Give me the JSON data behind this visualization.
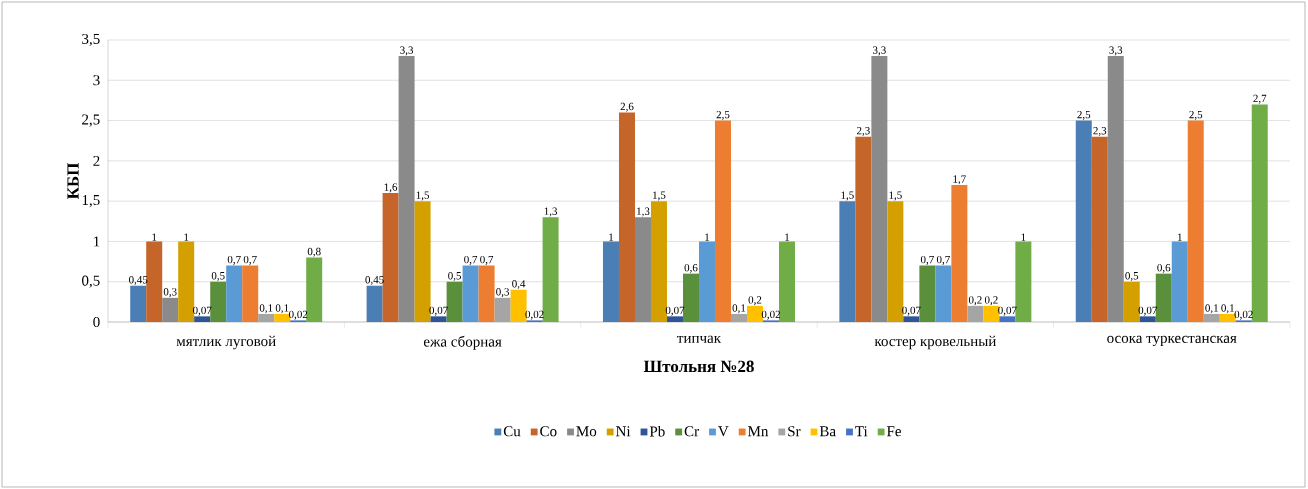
{
  "chart_data": {
    "type": "bar",
    "xlabel": "Штольня №28",
    "ylabel": "КБП",
    "categories": [
      "мятлик луговой",
      "ежа сборная",
      "типчак",
      "костер кровельный",
      "осока туркестанская"
    ],
    "series": [
      {
        "name": "Cu",
        "color": "#4a7eb4",
        "values": [
          0.45,
          0.45,
          1,
          1.5,
          2.5
        ],
        "value_labels": [
          "0,45",
          "0,45",
          "1",
          "1,5",
          "2,5"
        ]
      },
      {
        "name": "Co",
        "color": "#c5652a",
        "values": [
          1,
          1.6,
          2.6,
          2.3,
          2.3
        ],
        "value_labels": [
          "1",
          "1,6",
          "2,6",
          "2,3",
          "2,3"
        ]
      },
      {
        "name": "Mo",
        "color": "#8a8a8a",
        "values": [
          0.3,
          3.3,
          1.3,
          3.3,
          3.3
        ],
        "value_labels": [
          "0,3",
          "3,3",
          "1,3",
          "3,3",
          "3,3"
        ]
      },
      {
        "name": "Ni",
        "color": "#d4a000",
        "values": [
          1,
          1.5,
          1.5,
          1.5,
          0.5
        ],
        "value_labels": [
          "1",
          "1,5",
          "1,5",
          "1,5",
          "0,5"
        ]
      },
      {
        "name": "Pb",
        "color": "#2e5597",
        "values": [
          0.07,
          0.07,
          0.07,
          0.07,
          0.07
        ],
        "value_labels": [
          "0,07",
          "0,07",
          "0,07",
          "0,07",
          "0,07"
        ]
      },
      {
        "name": "Cr",
        "color": "#5a8f3c",
        "values": [
          0.5,
          0.5,
          0.6,
          0.7,
          0.6
        ],
        "value_labels": [
          "0,5",
          "0,5",
          "0,6",
          "0,7",
          "0,6"
        ]
      },
      {
        "name": "V",
        "color": "#5b9bd5",
        "values": [
          0.7,
          0.7,
          1,
          0.7,
          1
        ],
        "value_labels": [
          "0,7",
          "0,7",
          "1",
          "0,7",
          "1"
        ]
      },
      {
        "name": "Mn",
        "color": "#ed7d31",
        "values": [
          0.7,
          0.7,
          2.5,
          1.7,
          2.5
        ],
        "value_labels": [
          "0,7",
          "0,7",
          "2,5",
          "1,7",
          "2,5"
        ]
      },
      {
        "name": "Sr",
        "color": "#a5a5a5",
        "values": [
          0.1,
          0.3,
          0.1,
          0.2,
          0.1
        ],
        "value_labels": [
          "0,1",
          "0,3",
          "0,1",
          "0,2",
          "0,1"
        ]
      },
      {
        "name": "Ba",
        "color": "#ffc000",
        "values": [
          0.1,
          0.4,
          0.2,
          0.2,
          0.1
        ],
        "value_labels": [
          "0,1",
          "0,4",
          "0,2",
          "0,2",
          "0,1"
        ]
      },
      {
        "name": "Ti",
        "color": "#4472c4",
        "values": [
          0.02,
          0.02,
          0.02,
          0.07,
          0.02
        ],
        "value_labels": [
          "0,02",
          "0,02",
          "0,02",
          "0,07",
          "0,02"
        ]
      },
      {
        "name": "Fe",
        "color": "#70ad47",
        "values": [
          0.8,
          1.3,
          1,
          1,
          2.7
        ],
        "value_labels": [
          "0,8",
          "1,3",
          "1",
          "1",
          "2,7"
        ]
      }
    ],
    "ylim": [
      0,
      3.5
    ],
    "yticks": [
      {
        "value": 0,
        "label": "0"
      },
      {
        "value": 0.5,
        "label": "0,5"
      },
      {
        "value": 1,
        "label": "1"
      },
      {
        "value": 1.5,
        "label": "1,5"
      },
      {
        "value": 2,
        "label": "2"
      },
      {
        "value": 2.5,
        "label": "2,5"
      },
      {
        "value": 3,
        "label": "3"
      },
      {
        "value": 3.5,
        "label": "3,5"
      }
    ],
    "grid": "y",
    "legend": "bottom"
  }
}
